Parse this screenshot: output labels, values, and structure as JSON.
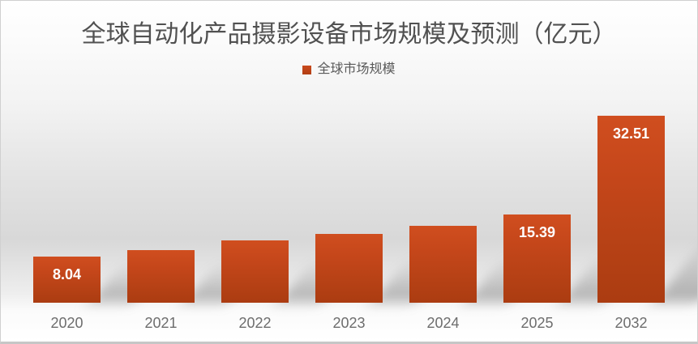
{
  "header": {
    "title": "全球自动化产品摄影设备市场规模及预测（亿元）"
  },
  "legend": {
    "label": "全球市场规模",
    "swatch_color": "#BE4217"
  },
  "chart_data": {
    "type": "bar",
    "title": "全球自动化产品摄影设备市场规模及预测（亿元）",
    "categories": [
      "2020",
      "2021",
      "2022",
      "2023",
      "2024",
      "2025",
      "2032"
    ],
    "series": [
      {
        "name": "全球市场规模",
        "values": [
          8.04,
          9.2,
          10.8,
          12.0,
          13.4,
          15.39,
          32.51
        ]
      }
    ],
    "data_labels": [
      "8.04",
      "",
      "",
      "",
      "",
      "15.39",
      "32.51"
    ],
    "xlabel": "",
    "ylabel": "",
    "ylim": [
      0,
      36
    ],
    "grid": false,
    "axes_visible": false,
    "legend_position": "top-center",
    "bar_color": "#BE4217",
    "bar_gradient_top": "#D04E1F",
    "bar_gradient_bottom": "#AB3C11",
    "value_label_color": "#FFFFFF",
    "axis_tick_color": "#6D6D6D",
    "title_color": "#515151",
    "background": "gray-gradient"
  }
}
